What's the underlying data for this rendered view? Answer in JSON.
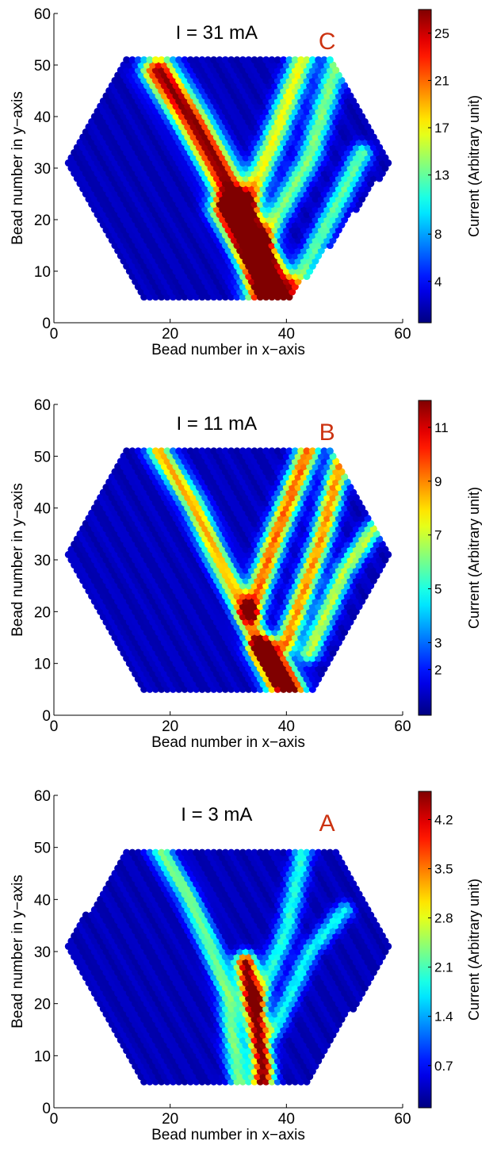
{
  "chart_data": [
    {
      "type": "heatmap",
      "panel_label": "C",
      "title": "I = 31 mA",
      "xlabel": "Bead number in x−axis",
      "ylabel": "Bead number in y−axis",
      "xlim": [
        0,
        60
      ],
      "ylim": [
        0,
        60
      ],
      "xticks": [
        "0",
        "20",
        "40",
        "60"
      ],
      "yticks": [
        "0",
        "10",
        "20",
        "30",
        "40",
        "50",
        "60"
      ],
      "colorbar": {
        "label": "Current (Arbitrary unit)",
        "ticks": [
          "4",
          "8",
          "13",
          "17",
          "21",
          "25"
        ],
        "tick_values": [
          4,
          8,
          13,
          17,
          21,
          25
        ],
        "range": [
          0.5,
          27
        ],
        "colormap": "jet"
      },
      "hexagon": [
        [
          15,
          5
        ],
        [
          41,
          5
        ],
        [
          58,
          31
        ],
        [
          47,
          52
        ],
        [
          13,
          52
        ],
        [
          2,
          31
        ]
      ],
      "tracks": [
        {
          "points": [
            [
              18,
              49
            ],
            [
              24,
              39
            ],
            [
              28,
              31
            ],
            [
              32,
              22
            ],
            [
              35,
              11
            ],
            [
              36,
              5
            ]
          ],
          "peak": 25,
          "width": 2.0
        },
        {
          "points": [
            [
              30,
              22
            ],
            [
              35,
              14
            ],
            [
              40,
              5
            ]
          ],
          "peak": 24,
          "width": 2.0
        },
        {
          "points": [
            [
              33,
              22
            ],
            [
              38,
              36
            ],
            [
              43,
              52
            ]
          ],
          "peak": 15,
          "width": 1.5
        },
        {
          "points": [
            [
              36,
              16
            ],
            [
              44,
              32
            ],
            [
              49,
              52
            ]
          ],
          "peak": 12,
          "width": 1.4
        },
        {
          "points": [
            [
              42,
              8
            ],
            [
              50,
              26
            ],
            [
              53,
              33
            ]
          ],
          "peak": 11,
          "width": 1.3
        }
      ],
      "background": 2
    },
    {
      "type": "heatmap",
      "panel_label": "B",
      "title": "I = 11 mA",
      "xlabel": "Bead number in x−axis",
      "ylabel": "Bead number in y−axis",
      "xlim": [
        0,
        60
      ],
      "ylim": [
        0,
        60
      ],
      "xticks": [
        "0",
        "20",
        "40",
        "60"
      ],
      "yticks": [
        "0",
        "10",
        "20",
        "30",
        "40",
        "50",
        "60"
      ],
      "colorbar": {
        "label": "Current (Arbitrary unit)",
        "ticks": [
          "2",
          "3",
          "5",
          "7",
          "9",
          "11"
        ],
        "tick_values": [
          2,
          3,
          5,
          7,
          9,
          11
        ],
        "range": [
          0.3,
          12
        ],
        "colormap": "jet"
      },
      "hexagon": [
        [
          15,
          5
        ],
        [
          45,
          5
        ],
        [
          58,
          31
        ],
        [
          47,
          52
        ],
        [
          12,
          52
        ],
        [
          2,
          31
        ]
      ],
      "tracks": [
        {
          "points": [
            [
              18,
              51
            ],
            [
              24,
              41
            ],
            [
              28,
              31
            ],
            [
              32,
              22
            ],
            [
              36,
              12
            ],
            [
              38,
              6
            ]
          ],
          "peak": 7.5,
          "width": 1.4
        },
        {
          "points": [
            [
              36,
              13
            ],
            [
              39,
              9
            ],
            [
              41,
              5
            ]
          ],
          "peak": 11.5,
          "width": 1.6
        },
        {
          "points": [
            [
              34,
              20
            ],
            [
              38,
              34
            ],
            [
              44,
              52
            ]
          ],
          "peak": 8.5,
          "width": 1.4
        },
        {
          "points": [
            [
              40,
              14
            ],
            [
              46,
              34
            ],
            [
              50,
              52
            ]
          ],
          "peak": 8,
          "width": 1.3
        },
        {
          "points": [
            [
              44,
              12
            ],
            [
              50,
              28
            ],
            [
              55,
              36
            ]
          ],
          "peak": 6,
          "width": 1.2
        }
      ],
      "background": 1.0
    },
    {
      "type": "heatmap",
      "panel_label": "A",
      "title": "I = 3 mA",
      "xlabel": "Bead number in x−axis",
      "ylabel": "Bead number in y−axis",
      "xlim": [
        0,
        60
      ],
      "ylim": [
        0,
        60
      ],
      "xticks": [
        "0",
        "20",
        "40",
        "60"
      ],
      "yticks": [
        "0",
        "10",
        "20",
        "30",
        "40",
        "50",
        "60"
      ],
      "colorbar": {
        "label": "Current (Arbitrary unit)",
        "ticks": [
          "0.7",
          "1.4",
          "2.1",
          "2.8",
          "3.5",
          "4.2"
        ],
        "tick_values": [
          0.7,
          1.4,
          2.1,
          2.8,
          3.5,
          4.2
        ],
        "range": [
          0.1,
          4.6
        ],
        "colormap": "jet"
      },
      "hexagon": [
        [
          15,
          5
        ],
        [
          44,
          5
        ],
        [
          58,
          31
        ],
        [
          48,
          50
        ],
        [
          13,
          50
        ],
        [
          2,
          31
        ]
      ],
      "tracks": [
        {
          "points": [
            [
              18,
              50
            ],
            [
              23,
              41
            ],
            [
              27,
              31
            ],
            [
              30,
              22
            ],
            [
              31,
              12
            ],
            [
              32,
              5
            ]
          ],
          "peak": 2.0,
          "width": 1.3
        },
        {
          "points": [
            [
              33,
              28
            ],
            [
              35,
              16
            ],
            [
              36,
              8
            ],
            [
              36,
              5
            ]
          ],
          "peak": 4.4,
          "width": 1.3
        },
        {
          "points": [
            [
              35,
              20
            ],
            [
              40,
              34
            ],
            [
              43,
              50
            ]
          ],
          "peak": 1.6,
          "width": 1.2
        },
        {
          "points": [
            [
              38,
              15
            ],
            [
              44,
              30
            ],
            [
              50,
              38
            ]
          ],
          "peak": 1.5,
          "width": 1.1
        }
      ],
      "background": 0.35
    }
  ]
}
